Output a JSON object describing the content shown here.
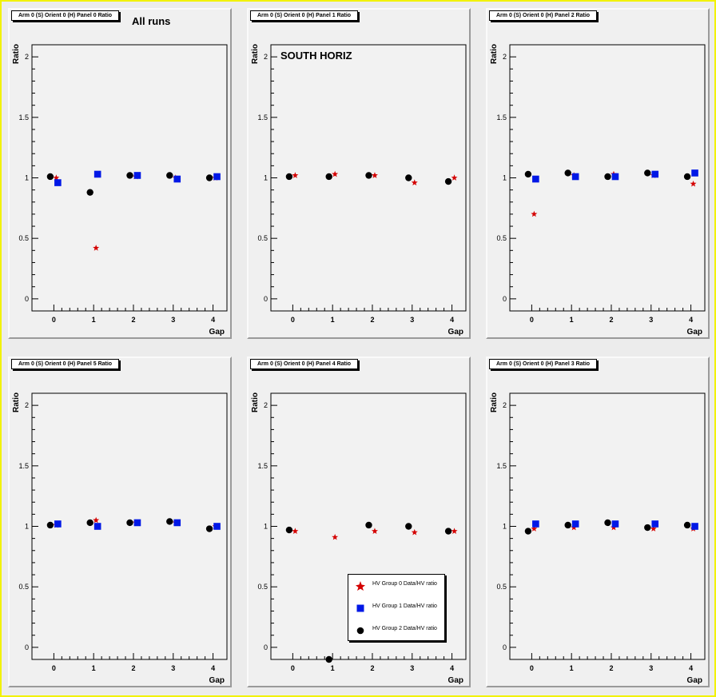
{
  "colors": {
    "group0": "#d40000",
    "group1": "#0018e6",
    "group2": "#000000",
    "frame": "#ffff00",
    "pad_bg": "#f0f0f0"
  },
  "annotations": {
    "all_runs": "All runs",
    "south_horiz": "SOUTH HORIZ"
  },
  "legend": {
    "entries": [
      {
        "label": "HV Group 0 Data/HV ratio",
        "marker": "star",
        "color": "#d40000"
      },
      {
        "label": "HV Group 1 Data/HV ratio",
        "marker": "square",
        "color": "#0018e6"
      },
      {
        "label": "HV Group 2 Data/HV ratio",
        "marker": "circle",
        "color": "#000000"
      }
    ]
  },
  "chart_data": [
    {
      "type": "scatter",
      "title": "Arm 0 (S) Orient 0 (H) Panel 0 Ratio",
      "xlabel": "Gap",
      "ylabel": "Ratio",
      "xlim": [
        -0.55,
        4.35
      ],
      "ylim": [
        -0.1,
        2.1
      ],
      "xticks": [
        "0",
        "1",
        "2",
        "3",
        "4"
      ],
      "yticks": [
        "0",
        "0.5",
        "1",
        "1.5",
        "2"
      ],
      "series": [
        {
          "marker": "star",
          "x": [
            0,
            1,
            2,
            3,
            4
          ],
          "y": [
            1.0,
            0.42,
            1.01,
            1.0,
            1.0
          ]
        },
        {
          "marker": "square",
          "x": [
            0,
            1,
            2,
            3,
            4
          ],
          "y": [
            0.96,
            1.03,
            1.02,
            0.99,
            1.01
          ]
        },
        {
          "marker": "circle",
          "x": [
            0,
            1,
            2,
            3,
            4
          ],
          "y": [
            1.01,
            0.88,
            1.02,
            1.02,
            1.0
          ]
        }
      ]
    },
    {
      "type": "scatter",
      "title": "Arm 0 (S) Orient 0 (H) Panel 1 Ratio",
      "xlabel": "Gap",
      "ylabel": "Ratio",
      "xlim": [
        -0.55,
        4.35
      ],
      "ylim": [
        -0.1,
        2.1
      ],
      "xticks": [
        "0",
        "1",
        "2",
        "3",
        "4"
      ],
      "yticks": [
        "0",
        "0.5",
        "1",
        "1.5",
        "2"
      ],
      "series": [
        {
          "marker": "star",
          "x": [
            0,
            1,
            2,
            3,
            4
          ],
          "y": [
            1.02,
            1.03,
            1.02,
            0.96,
            1.0
          ]
        },
        {
          "marker": "circle",
          "x": [
            0,
            1,
            2,
            3,
            4
          ],
          "y": [
            1.01,
            1.01,
            1.02,
            1.0,
            0.97
          ]
        }
      ]
    },
    {
      "type": "scatter",
      "title": "Arm 0 (S) Orient 0 (H) Panel 2 Ratio",
      "xlabel": "Gap",
      "ylabel": "Ratio",
      "xlim": [
        -0.55,
        4.35
      ],
      "ylim": [
        -0.1,
        2.1
      ],
      "xticks": [
        "0",
        "1",
        "2",
        "3",
        "4"
      ],
      "yticks": [
        "0",
        "0.5",
        "1",
        "1.5",
        "2"
      ],
      "series": [
        {
          "marker": "star",
          "x": [
            0,
            1,
            2,
            3,
            4
          ],
          "y": [
            0.7,
            1.02,
            1.03,
            1.02,
            0.95
          ]
        },
        {
          "marker": "square",
          "x": [
            0,
            1,
            2,
            3,
            4
          ],
          "y": [
            0.99,
            1.01,
            1.01,
            1.03,
            1.04
          ]
        },
        {
          "marker": "circle",
          "x": [
            0,
            1,
            2,
            3,
            4
          ],
          "y": [
            1.03,
            1.04,
            1.01,
            1.04,
            1.01
          ]
        }
      ]
    },
    {
      "type": "scatter",
      "title": "Arm 0 (S) Orient 0 (H) Panel 5 Ratio",
      "xlabel": "Gap",
      "ylabel": "Ratio",
      "xlim": [
        -0.55,
        4.35
      ],
      "ylim": [
        -0.1,
        2.1
      ],
      "xticks": [
        "0",
        "1",
        "2",
        "3",
        "4"
      ],
      "yticks": [
        "0",
        "0.5",
        "1",
        "1.5",
        "2"
      ],
      "series": [
        {
          "marker": "star",
          "x": [
            0,
            1,
            2,
            3,
            4
          ],
          "y": [
            1.01,
            1.05,
            1.03,
            1.03,
            1.0
          ]
        },
        {
          "marker": "square",
          "x": [
            0,
            1,
            2,
            3,
            4
          ],
          "y": [
            1.02,
            1.0,
            1.03,
            1.03,
            1.0
          ]
        },
        {
          "marker": "circle",
          "x": [
            0,
            1,
            2,
            3,
            4
          ],
          "y": [
            1.01,
            1.03,
            1.03,
            1.04,
            0.98
          ]
        }
      ]
    },
    {
      "type": "scatter",
      "title": "Arm 0 (S) Orient 0 (H) Panel 4 Ratio",
      "xlabel": "Gap",
      "ylabel": "Ratio",
      "xlim": [
        -0.55,
        4.35
      ],
      "ylim": [
        -0.1,
        2.1
      ],
      "xticks": [
        "0",
        "1",
        "2",
        "3",
        "4"
      ],
      "yticks": [
        "0",
        "0.5",
        "1",
        "1.5",
        "2"
      ],
      "series": [
        {
          "marker": "star",
          "x": [
            0,
            1,
            2,
            3,
            4
          ],
          "y": [
            0.96,
            0.91,
            0.96,
            0.95,
            0.96
          ]
        },
        {
          "marker": "circle",
          "x": [
            0,
            1,
            2,
            3,
            4
          ],
          "y": [
            0.97,
            -0.1,
            1.01,
            1.0,
            0.96
          ]
        }
      ]
    },
    {
      "type": "scatter",
      "title": "Arm 0 (S) Orient 0 (H) Panel 3 Ratio",
      "xlabel": "Gap",
      "ylabel": "Ratio",
      "xlim": [
        -0.55,
        4.35
      ],
      "ylim": [
        -0.1,
        2.1
      ],
      "xticks": [
        "0",
        "1",
        "2",
        "3",
        "4"
      ],
      "yticks": [
        "0",
        "0.5",
        "1",
        "1.5",
        "2"
      ],
      "series": [
        {
          "marker": "star",
          "x": [
            0,
            1,
            2,
            3,
            4
          ],
          "y": [
            0.98,
            0.99,
            0.99,
            0.98,
            0.98
          ]
        },
        {
          "marker": "square",
          "x": [
            0,
            1,
            2,
            3,
            4
          ],
          "y": [
            1.02,
            1.02,
            1.02,
            1.02,
            1.0
          ]
        },
        {
          "marker": "circle",
          "x": [
            0,
            1,
            2,
            3,
            4
          ],
          "y": [
            0.96,
            1.01,
            1.03,
            0.99,
            1.01
          ]
        }
      ]
    }
  ]
}
